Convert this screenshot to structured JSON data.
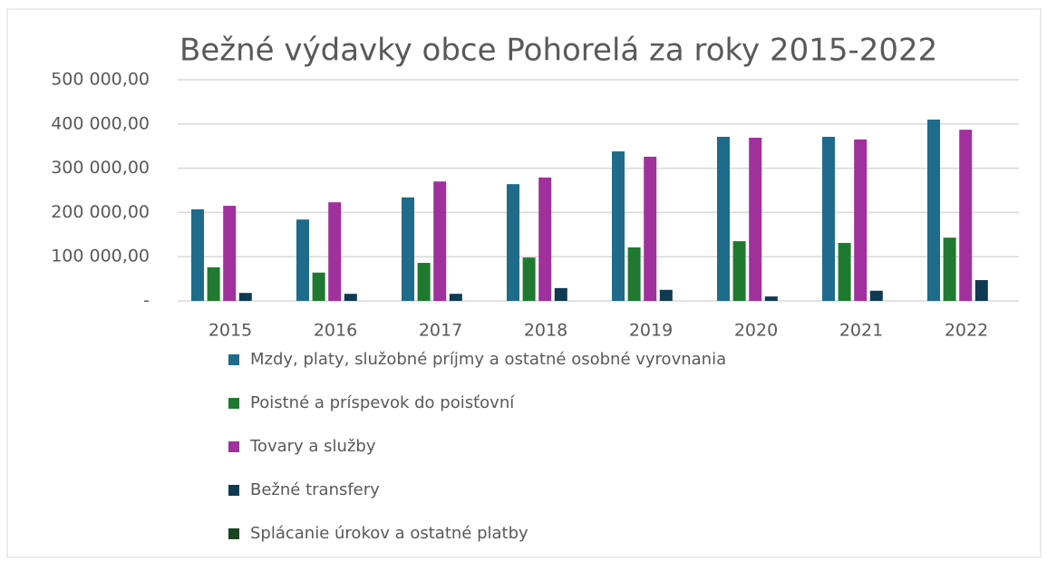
{
  "chart_data": {
    "type": "bar",
    "title": "Bežné výdavky obce Pohorelá za roky 2015-2022",
    "categories": [
      "2015",
      "2016",
      "2017",
      "2018",
      "2019",
      "2020",
      "2021",
      "2022"
    ],
    "series": [
      {
        "name": "Mzdy, platy, služobné príjmy a ostatné osobné vyrovnania",
        "color": "#1f6b8c",
        "values": [
          207000,
          184000,
          234000,
          264000,
          338000,
          371000,
          371000,
          410000
        ]
      },
      {
        "name": "Poistné a príspevok do poisťovní",
        "color": "#1f7a30",
        "values": [
          76000,
          64000,
          86000,
          98000,
          121000,
          135000,
          131000,
          143000
        ]
      },
      {
        "name": "Tovary a služby",
        "color": "#a0309c",
        "values": [
          215000,
          223000,
          270000,
          279000,
          326000,
          369000,
          365000,
          387000
        ]
      },
      {
        "name": "Bežné transfery",
        "color": "#0f3a52",
        "values": [
          18000,
          16000,
          16000,
          29000,
          25000,
          10000,
          23000,
          47000
        ]
      },
      {
        "name": "Splácanie úrokov a ostatné platby",
        "color": "#1a4522",
        "values": [
          0,
          0,
          0,
          0,
          0,
          0,
          0,
          0
        ]
      }
    ],
    "ylim": [
      0,
      500000
    ],
    "yticks": [
      {
        "value": 0,
        "label": "-"
      },
      {
        "value": 100000,
        "label": "100 000,00"
      },
      {
        "value": 200000,
        "label": "200 000,00"
      },
      {
        "value": 300000,
        "label": "300 000,00"
      },
      {
        "value": 400000,
        "label": "400 000,00"
      },
      {
        "value": 500000,
        "label": "500 000,00"
      }
    ],
    "grid": true,
    "legend": "bottom"
  }
}
